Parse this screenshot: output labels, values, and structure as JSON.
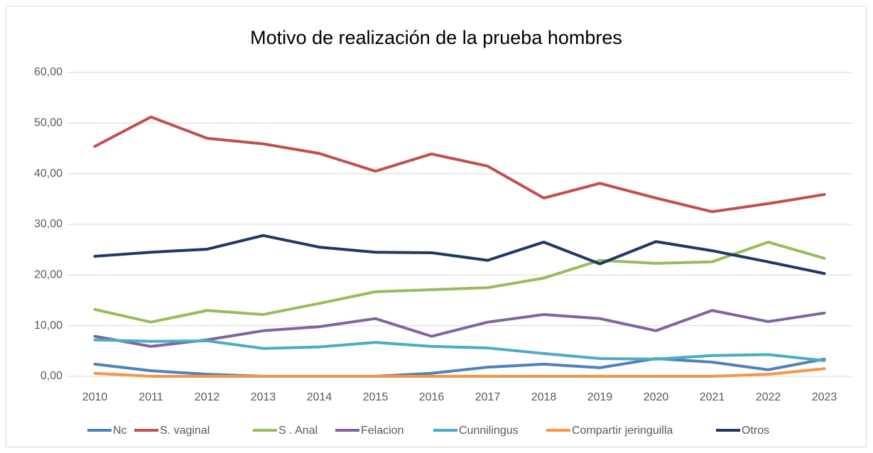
{
  "chart_data": {
    "type": "line",
    "title": "Motivo de realización de la prueba hombres",
    "categories": [
      "2010",
      "2011",
      "2012",
      "2013",
      "2014",
      "2015",
      "2016",
      "2017",
      "2018",
      "2019",
      "2020",
      "2021",
      "2022",
      "2023"
    ],
    "ylim": [
      0,
      60
    ],
    "yticks": [
      {
        "value": 0,
        "label": "0,00"
      },
      {
        "value": 10,
        "label": "10,00"
      },
      {
        "value": 20,
        "label": "20,00"
      },
      {
        "value": 30,
        "label": "30,00"
      },
      {
        "value": 40,
        "label": "40,00"
      },
      {
        "value": 50,
        "label": "50,00"
      },
      {
        "value": 60,
        "label": "60,00"
      }
    ],
    "grid": true,
    "legend": "bottom",
    "series": [
      {
        "name": "Nc",
        "color": "#4f81bd",
        "values": [
          2.4,
          1.1,
          0.4,
          0,
          0,
          0,
          0.6,
          1.8,
          2.4,
          1.7,
          3.5,
          2.8,
          1.3,
          3.4
        ]
      },
      {
        "name": "S. vaginal",
        "color": "#c0504d",
        "values": [
          45.4,
          51.2,
          47.0,
          45.9,
          44.0,
          40.5,
          43.9,
          41.5,
          35.2,
          38.1,
          35.2,
          32.5,
          34.1,
          35.9
        ]
      },
      {
        "name": "S . Anal",
        "color": "#9bbb59",
        "values": [
          13.2,
          10.7,
          13.0,
          12.2,
          14.4,
          16.7,
          17.1,
          17.5,
          19.4,
          22.9,
          22.3,
          22.6,
          26.5,
          23.3
        ]
      },
      {
        "name": "Felacion",
        "color": "#8064a2",
        "values": [
          7.9,
          5.9,
          7.2,
          9.0,
          9.8,
          11.4,
          7.9,
          10.7,
          12.2,
          11.4,
          9.0,
          13.0,
          10.8,
          12.5
        ]
      },
      {
        "name": "Cunnilingus",
        "color": "#4bacc6",
        "values": [
          7.2,
          6.9,
          7.0,
          5.5,
          5.8,
          6.7,
          5.9,
          5.6,
          4.5,
          3.5,
          3.4,
          4.1,
          4.3,
          3.1
        ]
      },
      {
        "name": "Compartir jeringuilla",
        "color": "#f79646",
        "values": [
          0.6,
          0,
          0,
          0,
          0,
          0,
          0,
          0,
          0,
          0,
          0,
          0,
          0.4,
          1.5
        ]
      },
      {
        "name": "Otros",
        "color": "#1f3864",
        "values": [
          23.7,
          24.5,
          25.1,
          27.8,
          25.5,
          24.5,
          24.4,
          22.9,
          26.5,
          22.2,
          26.6,
          24.8,
          22.6,
          20.3
        ]
      }
    ]
  }
}
